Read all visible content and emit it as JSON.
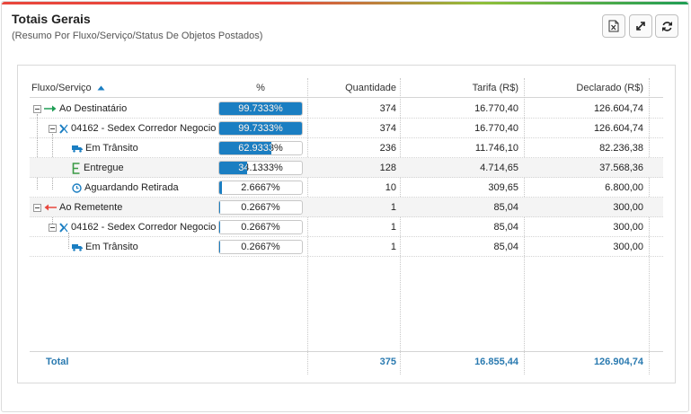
{
  "header": {
    "title": "Totais Gerais",
    "subtitle": "(Resumo Por Fluxo/Serviço/Status De Objetos Postados)"
  },
  "toolbar": {
    "export_icon": "excel-export-icon",
    "expand_icon": "expand-icon",
    "refresh_icon": "refresh-icon"
  },
  "columns": {
    "fluxo": "Fluxo/Serviço",
    "pct": "%",
    "qtd": "Quantidade",
    "tarifa": "Tarifa (R$)",
    "declarado": "Declarado (R$)"
  },
  "rows": [
    {
      "label": "Ao Destinatário",
      "icon": "arrow-right-icon",
      "pct": "99.7333%",
      "fraction": 0.997333,
      "qtd": "374",
      "tarifa": "16.770,40",
      "declarado": "126.604,74"
    },
    {
      "label": "04162 - Sedex Corredor Negocios",
      "icon": "correios-logo-icon",
      "pct": "99.7333%",
      "fraction": 0.997333,
      "qtd": "374",
      "tarifa": "16.770,40",
      "declarado": "126.604,74"
    },
    {
      "label": "Em Trânsito",
      "icon": "truck-icon",
      "pct": "62.9333%",
      "fraction": 0.629333,
      "qtd": "236",
      "tarifa": "11.746,10",
      "declarado": "82.236,38"
    },
    {
      "label": "Entregue",
      "icon": "delivered-e-icon",
      "pct": "34.1333%",
      "fraction": 0.341333,
      "qtd": "128",
      "tarifa": "4.714,65",
      "declarado": "37.568,36"
    },
    {
      "label": "Aguardando Retirada",
      "icon": "clock-icon",
      "pct": "2.6667%",
      "fraction": 0.026667,
      "qtd": "10",
      "tarifa": "309,65",
      "declarado": "6.800,00"
    },
    {
      "label": "Ao Remetente",
      "icon": "arrow-left-icon",
      "pct": "0.2667%",
      "fraction": 0.002667,
      "qtd": "1",
      "tarifa": "85,04",
      "declarado": "300,00"
    },
    {
      "label": "04162 - Sedex Corredor Negocios",
      "icon": "correios-logo-icon",
      "pct": "0.2667%",
      "fraction": 0.002667,
      "qtd": "1",
      "tarifa": "85,04",
      "declarado": "300,00"
    },
    {
      "label": "Em Trânsito",
      "icon": "truck-icon",
      "pct": "0.2667%",
      "fraction": 0.002667,
      "qtd": "1",
      "tarifa": "85,04",
      "declarado": "300,00"
    }
  ],
  "totals": {
    "label": "Total",
    "qtd": "375",
    "tarifa": "16.855,44",
    "declarado": "126.904,74"
  },
  "colors": {
    "bar_fill": "#1a7ec2",
    "total_text": "#2a7ab0",
    "arrow_right": "#1f9d55",
    "arrow_left": "#e8463c"
  }
}
